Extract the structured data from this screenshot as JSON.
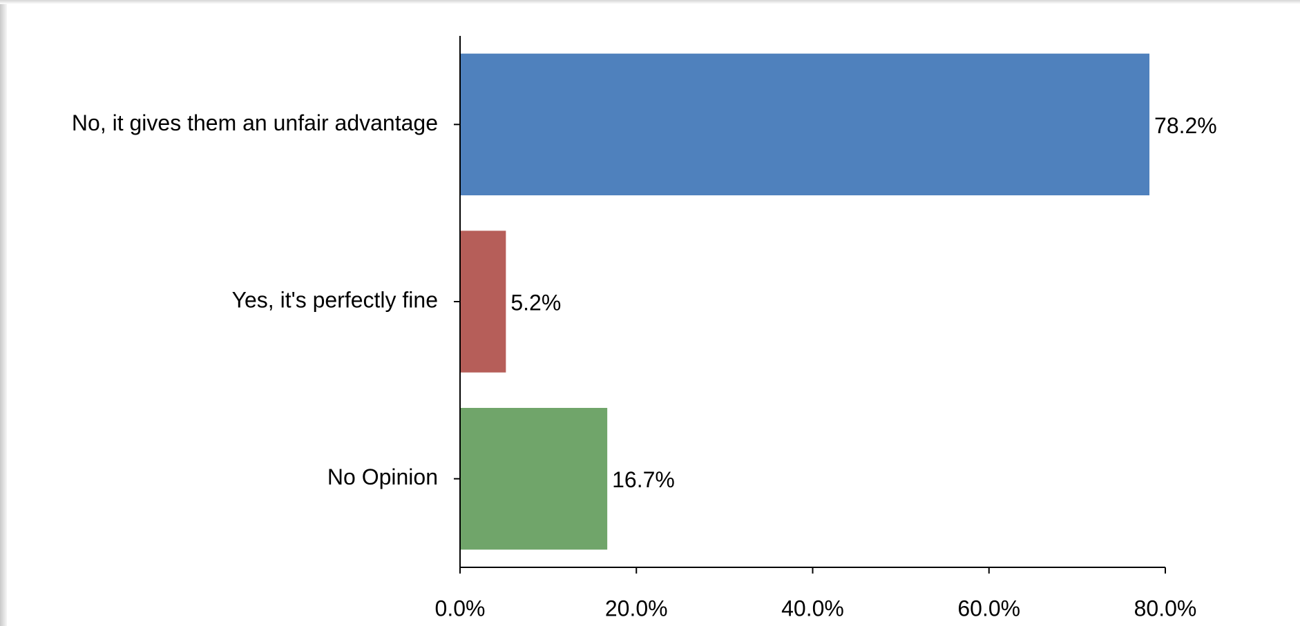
{
  "chart_data": {
    "type": "bar",
    "orientation": "horizontal",
    "categories": [
      "No, it gives them an unfair advantage",
      "Yes, it's perfectly fine",
      "No Opinion"
    ],
    "values": [
      78.2,
      5.2,
      16.7
    ],
    "value_labels": [
      "78.2%",
      "5.2%",
      "16.7%"
    ],
    "colors": [
      "#4f81bd",
      "#b65e59",
      "#70a56a"
    ],
    "xlim": [
      0,
      80
    ],
    "x_ticks": [
      0,
      20,
      40,
      60,
      80
    ],
    "x_tick_labels": [
      "0.0%",
      "20.0%",
      "40.0%",
      "60.0%",
      "80.0%"
    ],
    "title": "",
    "xlabel": "",
    "ylabel": "",
    "grid": false,
    "legend": "none"
  }
}
